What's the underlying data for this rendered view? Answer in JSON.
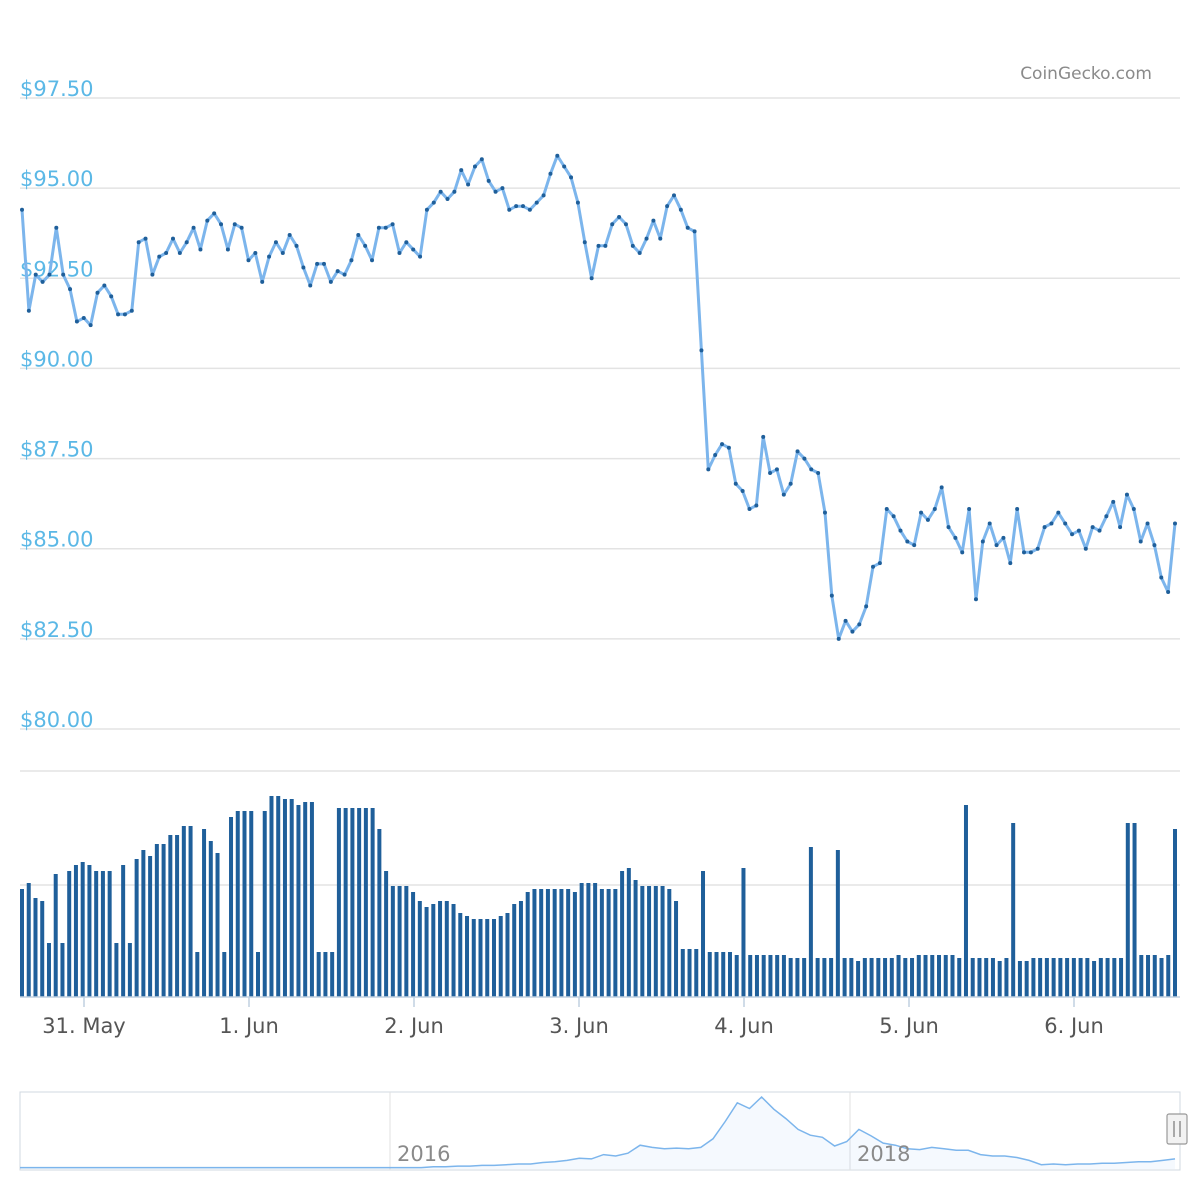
{
  "credit": "CoinGecko.com",
  "chart_data": {
    "type": "line",
    "title": "",
    "xlabel": "",
    "ylabel": "",
    "y_ticks": [
      "$80.00",
      "$82.50",
      "$85.00",
      "$87.50",
      "$90.00",
      "$92.50",
      "$95.00",
      "$97.50"
    ],
    "y_tick_values": [
      80,
      82.5,
      85,
      87.5,
      90,
      92.5,
      95,
      97.5
    ],
    "ylim": [
      80,
      97.5
    ],
    "x_ticks": [
      "31. May",
      "1. Jun",
      "2. Jun",
      "3. Jun",
      "4. Jun",
      "5. Jun",
      "6. Jun"
    ],
    "x_range_days": [
      "30. May 14:00",
      "6. Jun 15:00"
    ],
    "grid": true,
    "colors": {
      "price_line": "#7cb5ec",
      "price_points": "#1f5f9a",
      "volume_bars": "#1f5f9a",
      "navigator_line": "#7cb5ec",
      "axis_labels": "#5bb8e6"
    },
    "price": [
      94.4,
      91.6,
      92.6,
      92.4,
      92.6,
      93.9,
      92.6,
      92.2,
      91.3,
      91.4,
      91.2,
      92.1,
      92.3,
      92.0,
      91.5,
      91.5,
      91.6,
      93.5,
      93.6,
      92.6,
      93.1,
      93.2,
      93.6,
      93.2,
      93.5,
      93.9,
      93.3,
      94.1,
      94.3,
      94.0,
      93.3,
      94.0,
      93.9,
      93.0,
      93.2,
      92.4,
      93.1,
      93.5,
      93.2,
      93.7,
      93.4,
      92.8,
      92.3,
      92.9,
      92.9,
      92.4,
      92.7,
      92.6,
      93.0,
      93.7,
      93.4,
      93.0,
      93.9,
      93.9,
      94.0,
      93.2,
      93.5,
      93.3,
      93.1,
      94.4,
      94.6,
      94.9,
      94.7,
      94.9,
      95.5,
      95.1,
      95.6,
      95.8,
      95.2,
      94.9,
      95.0,
      94.4,
      94.5,
      94.5,
      94.4,
      94.6,
      94.8,
      95.4,
      95.9,
      95.6,
      95.3,
      94.6,
      93.5,
      92.5,
      93.4,
      93.4,
      94.0,
      94.2,
      94.0,
      93.4,
      93.2,
      93.6,
      94.1,
      93.6,
      94.5,
      94.8,
      94.4,
      93.9,
      93.8,
      90.5,
      87.2,
      87.6,
      87.9,
      87.8,
      86.8,
      86.6,
      86.1,
      86.2,
      88.1,
      87.1,
      87.2,
      86.5,
      86.8,
      87.7,
      87.5,
      87.2,
      87.1,
      86.0,
      83.7,
      82.5,
      83.0,
      82.7,
      82.9,
      83.4,
      84.5,
      84.6,
      86.1,
      85.9,
      85.5,
      85.2,
      85.1,
      86.0,
      85.8,
      86.1,
      86.7,
      85.6,
      85.3,
      84.9,
      86.1,
      83.6,
      85.2,
      85.7,
      85.1,
      85.3,
      84.6,
      86.1,
      84.9,
      84.9,
      85.0,
      85.6,
      85.7,
      86.0,
      85.7,
      85.4,
      85.5,
      85.0,
      85.6,
      85.5,
      85.9,
      86.3,
      85.6,
      86.5,
      86.1,
      85.2,
      85.7,
      85.1,
      84.2,
      83.8,
      85.7
    ],
    "volume_bars_heights": [
      3.6,
      3.8,
      3.3,
      3.2,
      1.8,
      4.1,
      1.8,
      4.2,
      4.4,
      4.5,
      4.4,
      4.2,
      4.2,
      4.2,
      1.8,
      4.4,
      1.8,
      4.6,
      4.9,
      4.7,
      5.1,
      5.1,
      5.4,
      5.4,
      5.7,
      5.7,
      1.5,
      5.6,
      5.2,
      4.8,
      1.5,
      6.0,
      6.2,
      6.2,
      6.2,
      1.5,
      6.2,
      6.7,
      6.7,
      6.6,
      6.6,
      6.4,
      6.5,
      6.5,
      1.5,
      1.5,
      1.5,
      6.3,
      6.3,
      6.3,
      6.3,
      6.3,
      6.3,
      5.6,
      4.2,
      3.7,
      3.7,
      3.7,
      3.5,
      3.2,
      3.0,
      3.1,
      3.2,
      3.2,
      3.1,
      2.8,
      2.7,
      2.6,
      2.6,
      2.6,
      2.6,
      2.7,
      2.8,
      3.1,
      3.2,
      3.5,
      3.6,
      3.6,
      3.6,
      3.6,
      3.6,
      3.6,
      3.5,
      3.8,
      3.8,
      3.8,
      3.6,
      3.6,
      3.6,
      4.2,
      4.3,
      3.9,
      3.7,
      3.7,
      3.7,
      3.7,
      3.6,
      3.2,
      1.6,
      1.6,
      1.6,
      4.2,
      1.5,
      1.5,
      1.5,
      1.5,
      1.4,
      4.3,
      1.4,
      1.4,
      1.4,
      1.4,
      1.4,
      1.4,
      1.3,
      1.3,
      1.3,
      5.0,
      1.3,
      1.3,
      1.3,
      4.9,
      1.3,
      1.3,
      1.2,
      1.3,
      1.3,
      1.3,
      1.3,
      1.3,
      1.4,
      1.3,
      1.3,
      1.4,
      1.4,
      1.4,
      1.4,
      1.4,
      1.4,
      1.3,
      6.4,
      1.3,
      1.3,
      1.3,
      1.3,
      1.2,
      1.3,
      5.8,
      1.2,
      1.2,
      1.3,
      1.3,
      1.3,
      1.3,
      1.3,
      1.3,
      1.3,
      1.3,
      1.3,
      1.2,
      1.3,
      1.3,
      1.3,
      1.3,
      5.8,
      5.8,
      1.4,
      1.4,
      1.4,
      1.3,
      1.4,
      5.6
    ],
    "navigator": {
      "x_ticks": [
        "2016",
        "2018"
      ],
      "values": [
        0.02,
        0.02,
        0.02,
        0.02,
        0.02,
        0.02,
        0.02,
        0.02,
        0.02,
        0.02,
        0.02,
        0.02,
        0.02,
        0.02,
        0.02,
        0.02,
        0.02,
        0.02,
        0.02,
        0.02,
        0.02,
        0.02,
        0.02,
        0.02,
        0.02,
        0.02,
        0.02,
        0.02,
        0.02,
        0.02,
        0.02,
        0.02,
        0.02,
        0.02,
        0.03,
        0.03,
        0.04,
        0.04,
        0.05,
        0.05,
        0.06,
        0.07,
        0.07,
        0.09,
        0.1,
        0.12,
        0.15,
        0.14,
        0.2,
        0.18,
        0.22,
        0.33,
        0.3,
        0.28,
        0.29,
        0.28,
        0.3,
        0.42,
        0.66,
        0.92,
        0.84,
        1.0,
        0.83,
        0.7,
        0.55,
        0.47,
        0.44,
        0.32,
        0.38,
        0.55,
        0.46,
        0.36,
        0.33,
        0.28,
        0.27,
        0.3,
        0.28,
        0.26,
        0.26,
        0.2,
        0.18,
        0.18,
        0.16,
        0.12,
        0.06,
        0.07,
        0.06,
        0.07,
        0.07,
        0.08,
        0.08,
        0.09,
        0.1,
        0.1,
        0.12,
        0.14
      ]
    }
  }
}
